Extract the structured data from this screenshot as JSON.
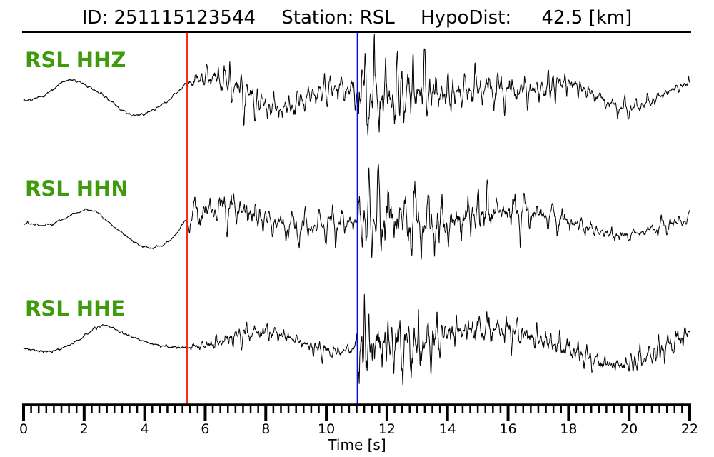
{
  "chart_data": {
    "type": "line",
    "title_parts": {
      "id": "ID: 251115123544",
      "station": "Station: RSL",
      "hypodist_label": "HypoDist:",
      "hypodist_value": "42.5 [km]"
    },
    "xlabel": "Time [s]",
    "x_range": [
      0,
      22
    ],
    "x_major_ticks": [
      0,
      2,
      4,
      6,
      8,
      10,
      12,
      14,
      16,
      18,
      20,
      22
    ],
    "x_minor_step": 0.25,
    "grid": false,
    "background": "#ffffff",
    "trace_color": "#000000",
    "label_color": "#3f9b0b",
    "picks": [
      {
        "name": "p-pick-line",
        "time": 5.4,
        "color": "#ff1200",
        "width": 1.8
      },
      {
        "name": "s-pick-line",
        "time": 11.03,
        "color": "#0008ee",
        "width": 2.2
      }
    ],
    "traces": [
      {
        "name": "RSL HHZ",
        "baseline": 130,
        "seed": 11,
        "lf": [
          [
            0,
            12
          ],
          [
            0.7,
            3
          ],
          [
            1.5,
            -18
          ],
          [
            2.5,
            0
          ],
          [
            3.6,
            31
          ],
          [
            4.6,
            16
          ],
          [
            5.4,
            -12
          ],
          [
            6.2,
            -22
          ],
          [
            7.0,
            -8
          ],
          [
            7.8,
            14
          ],
          [
            8.6,
            22
          ],
          [
            9.4,
            6
          ],
          [
            10.2,
            -6
          ],
          [
            11,
            -2
          ],
          [
            12,
            6
          ],
          [
            13,
            -4
          ],
          [
            14,
            2
          ],
          [
            15,
            -6
          ],
          [
            16,
            -4
          ],
          [
            17,
            -4
          ],
          [
            17.9,
            -14
          ],
          [
            18.8,
            2
          ],
          [
            19.8,
            22
          ],
          [
            20.7,
            12
          ],
          [
            21.3,
            -2
          ],
          [
            22,
            -14
          ]
        ],
        "env": [
          [
            0,
            1.6
          ],
          [
            5.3,
            1.6
          ],
          [
            5.45,
            10
          ],
          [
            6.0,
            16
          ],
          [
            6.8,
            20
          ],
          [
            7.5,
            22
          ],
          [
            8.4,
            18
          ],
          [
            9.3,
            15
          ],
          [
            10.2,
            17
          ],
          [
            10.9,
            18
          ],
          [
            11.05,
            60
          ],
          [
            11.5,
            48
          ],
          [
            12.0,
            52
          ],
          [
            12.6,
            40
          ],
          [
            13.4,
            32
          ],
          [
            14.4,
            26
          ],
          [
            15.4,
            22
          ],
          [
            16.4,
            20
          ],
          [
            17.4,
            17
          ],
          [
            18.4,
            14
          ],
          [
            19.4,
            11
          ],
          [
            20.3,
            9
          ],
          [
            21.2,
            8
          ],
          [
            22,
            9
          ]
        ]
      },
      {
        "name": "RSL HHN",
        "baseline": 310,
        "seed": 23,
        "lf": [
          [
            0,
            2
          ],
          [
            0.8,
            5
          ],
          [
            2.2,
            -16
          ],
          [
            3.0,
            8
          ],
          [
            4.0,
            36
          ],
          [
            4.8,
            28
          ],
          [
            5.4,
            -2
          ],
          [
            6.0,
            -14
          ],
          [
            7,
            -18
          ],
          [
            8,
            -2
          ],
          [
            9,
            8
          ],
          [
            10,
            4
          ],
          [
            11,
            0
          ],
          [
            12,
            -6
          ],
          [
            13,
            2
          ],
          [
            14,
            4
          ],
          [
            15,
            -12
          ],
          [
            16,
            -14
          ],
          [
            17,
            -10
          ],
          [
            18,
            0
          ],
          [
            19,
            14
          ],
          [
            19.8,
            20
          ],
          [
            21,
            8
          ],
          [
            22,
            -4
          ]
        ],
        "env": [
          [
            0,
            1.6
          ],
          [
            5.3,
            1.6
          ],
          [
            5.45,
            12
          ],
          [
            6.2,
            22
          ],
          [
            6.8,
            26
          ],
          [
            7.5,
            24
          ],
          [
            8.3,
            19
          ],
          [
            9.2,
            21
          ],
          [
            10.1,
            19
          ],
          [
            10.9,
            20
          ],
          [
            11.1,
            52
          ],
          [
            11.9,
            46
          ],
          [
            12.7,
            42
          ],
          [
            13.6,
            36
          ],
          [
            14.6,
            30
          ],
          [
            15.6,
            26
          ],
          [
            16.6,
            21
          ],
          [
            17.6,
            18
          ],
          [
            18.6,
            15
          ],
          [
            19.6,
            13
          ],
          [
            20.6,
            12
          ],
          [
            22,
            14
          ]
        ]
      },
      {
        "name": "RSL HHE",
        "baseline": 481,
        "seed": 37,
        "lf": [
          [
            0,
            7
          ],
          [
            0.9,
            11
          ],
          [
            1.7,
            -2
          ],
          [
            2.6,
            -25
          ],
          [
            3.3,
            -14
          ],
          [
            4.2,
            0
          ],
          [
            4.9,
            5
          ],
          [
            5.5,
            5
          ],
          [
            6.3,
            0
          ],
          [
            7.2,
            -12
          ],
          [
            8,
            -16
          ],
          [
            8.8,
            -8
          ],
          [
            9.6,
            6
          ],
          [
            10.3,
            12
          ],
          [
            11,
            6
          ],
          [
            12,
            0
          ],
          [
            13,
            4
          ],
          [
            14,
            -14
          ],
          [
            15,
            -20
          ],
          [
            16,
            -18
          ],
          [
            17,
            -6
          ],
          [
            18,
            8
          ],
          [
            19,
            26
          ],
          [
            19.8,
            30
          ],
          [
            20.6,
            18
          ],
          [
            21.4,
            0
          ],
          [
            22,
            -16
          ]
        ],
        "env": [
          [
            0,
            1.6
          ],
          [
            5.3,
            1.6
          ],
          [
            5.6,
            6
          ],
          [
            6.4,
            9
          ],
          [
            7.2,
            12
          ],
          [
            8.0,
            13
          ],
          [
            8.8,
            10
          ],
          [
            9.6,
            8
          ],
          [
            10.4,
            7
          ],
          [
            10.95,
            8
          ],
          [
            11.08,
            58
          ],
          [
            11.6,
            50
          ],
          [
            12.2,
            42
          ],
          [
            13.0,
            33
          ],
          [
            13.8,
            26
          ],
          [
            14.8,
            22
          ],
          [
            15.8,
            20
          ],
          [
            16.8,
            17
          ],
          [
            17.8,
            14
          ],
          [
            18.8,
            13
          ],
          [
            19.8,
            12
          ],
          [
            20.8,
            14
          ],
          [
            22,
            16
          ]
        ]
      }
    ]
  }
}
